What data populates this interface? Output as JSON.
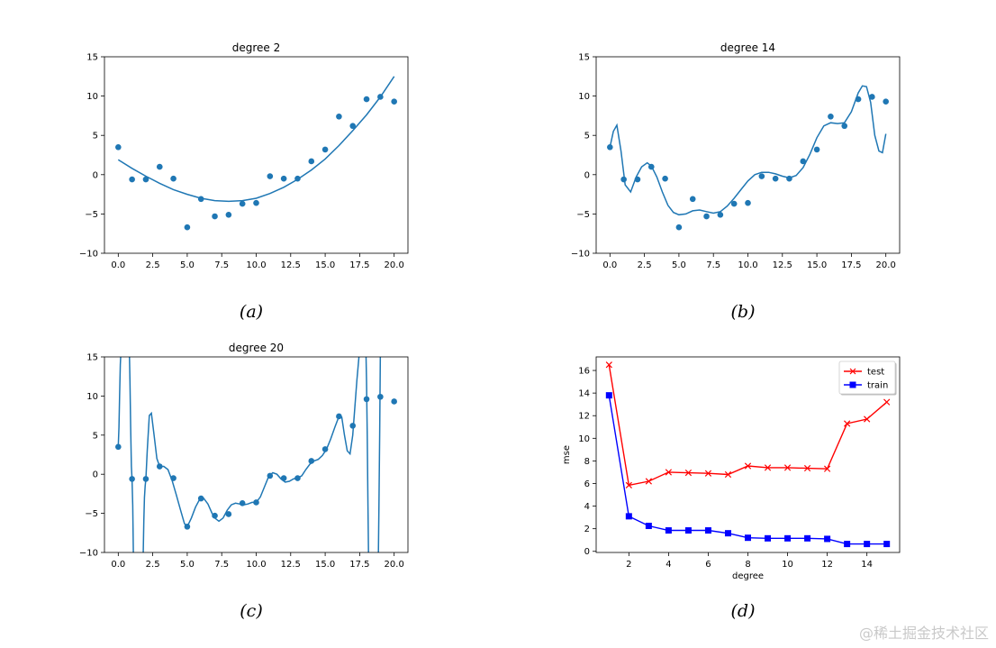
{
  "chart_data": [
    {
      "type": "scatter",
      "title": "degree 2",
      "caption": "(a)",
      "xlim": [
        -1,
        21
      ],
      "ylim": [
        -10,
        15
      ],
      "xticks": [
        0,
        2.5,
        5,
        7.5,
        10,
        12.5,
        15,
        17.5,
        20
      ],
      "xtick_labels": [
        "0.0",
        "2.5",
        "5.0",
        "7.5",
        "10.0",
        "12.5",
        "15.0",
        "17.5",
        "20.0"
      ],
      "yticks": [
        -10,
        -5,
        0,
        5,
        10,
        15
      ],
      "ytick_labels": [
        "−10",
        "−5",
        "0",
        "5",
        "10",
        "15"
      ],
      "points_x": [
        0,
        1,
        2,
        3,
        4,
        5,
        6,
        7,
        8,
        9,
        10,
        11,
        12,
        13,
        14,
        15,
        16,
        17,
        18,
        19,
        20
      ],
      "points_y": [
        3.5,
        -0.6,
        -0.6,
        1.0,
        -0.5,
        -6.7,
        -3.1,
        -5.3,
        -5.1,
        -3.7,
        -3.6,
        -0.2,
        -0.5,
        -0.5,
        1.7,
        3.2,
        7.4,
        6.2,
        9.6,
        9.9,
        9.3
      ],
      "curve_x": [
        0,
        1,
        2,
        3,
        4,
        5,
        6,
        7,
        8,
        9,
        10,
        11,
        12,
        13,
        14,
        15,
        16,
        17,
        18,
        19,
        20
      ],
      "curve_y": [
        1.9,
        0.8,
        -0.2,
        -1.1,
        -1.9,
        -2.5,
        -3.0,
        -3.3,
        -3.4,
        -3.3,
        -3.0,
        -2.4,
        -1.6,
        -0.6,
        0.6,
        2.0,
        3.7,
        5.6,
        7.6,
        9.9,
        12.5
      ]
    },
    {
      "type": "scatter",
      "title": "degree 14",
      "caption": "(b)",
      "xlim": [
        -1,
        21
      ],
      "ylim": [
        -10,
        15
      ],
      "xticks": [
        0,
        2.5,
        5,
        7.5,
        10,
        12.5,
        15,
        17.5,
        20
      ],
      "xtick_labels": [
        "0.0",
        "2.5",
        "5.0",
        "7.5",
        "10.0",
        "12.5",
        "15.0",
        "17.5",
        "20.0"
      ],
      "yticks": [
        -10,
        -5,
        0,
        5,
        10,
        15
      ],
      "ytick_labels": [
        "−10",
        "−5",
        "0",
        "5",
        "10",
        "15"
      ],
      "points_x": [
        0,
        1,
        2,
        3,
        4,
        5,
        6,
        7,
        8,
        9,
        10,
        11,
        12,
        13,
        14,
        15,
        16,
        17,
        18,
        19,
        20
      ],
      "points_y": [
        3.5,
        -0.6,
        -0.6,
        1.0,
        -0.5,
        -6.7,
        -3.1,
        -5.3,
        -5.1,
        -3.7,
        -3.6,
        -0.2,
        -0.5,
        -0.5,
        1.7,
        3.2,
        7.4,
        6.2,
        9.6,
        9.9,
        9.3
      ],
      "curve_x": [
        0,
        0.25,
        0.5,
        0.8,
        1.1,
        1.5,
        1.9,
        2.3,
        2.7,
        3.0,
        3.4,
        3.8,
        4.2,
        4.6,
        5.0,
        5.5,
        6.0,
        6.5,
        7.0,
        7.5,
        8.0,
        8.5,
        9.0,
        9.5,
        10.0,
        10.5,
        11.0,
        11.5,
        12.0,
        12.5,
        13.0,
        13.5,
        14.0,
        14.5,
        15.0,
        15.5,
        16.0,
        16.5,
        17.0,
        17.5,
        18.0,
        18.3,
        18.6,
        18.9,
        19.2,
        19.5,
        19.75,
        20.0
      ],
      "curve_y": [
        3.5,
        5.5,
        6.3,
        3.0,
        -1.3,
        -2.2,
        -0.3,
        1.0,
        1.5,
        1.1,
        -0.3,
        -2.2,
        -3.9,
        -4.8,
        -5.1,
        -5.0,
        -4.6,
        -4.5,
        -4.7,
        -4.9,
        -4.7,
        -4.0,
        -3.0,
        -1.9,
        -0.8,
        0.0,
        0.3,
        0.3,
        0.1,
        -0.2,
        -0.4,
        -0.1,
        0.9,
        2.6,
        4.7,
        6.2,
        6.6,
        6.5,
        6.6,
        8.0,
        10.4,
        11.3,
        11.2,
        9.2,
        5.0,
        3.0,
        2.8,
        5.2
      ]
    },
    {
      "type": "scatter",
      "title": "degree 20",
      "caption": "(c)",
      "xlim": [
        -1,
        21
      ],
      "ylim": [
        -10,
        15
      ],
      "xticks": [
        0,
        2.5,
        5,
        7.5,
        10,
        12.5,
        15,
        17.5,
        20
      ],
      "xtick_labels": [
        "0.0",
        "2.5",
        "5.0",
        "7.5",
        "10.0",
        "12.5",
        "15.0",
        "17.5",
        "20.0"
      ],
      "yticks": [
        -10,
        -5,
        0,
        5,
        10,
        15
      ],
      "ytick_labels": [
        "−10",
        "−5",
        "0",
        "5",
        "10",
        "15"
      ],
      "points_x": [
        0,
        1,
        2,
        3,
        4,
        5,
        6,
        7,
        8,
        9,
        10,
        11,
        12,
        13,
        14,
        15,
        16,
        17,
        18,
        19,
        20
      ],
      "points_y": [
        3.5,
        -0.6,
        -0.6,
        1.0,
        -0.5,
        -6.7,
        -3.1,
        -5.3,
        -5.1,
        -3.7,
        -3.6,
        -0.2,
        -0.5,
        -0.5,
        1.7,
        3.2,
        7.4,
        6.2,
        9.6,
        9.9,
        9.3
      ],
      "curve_x": [
        0,
        0.05,
        0.1,
        0.15,
        0.2,
        null,
        0.8,
        0.85,
        0.9,
        0.95,
        1.0,
        1.05,
        1.1,
        null,
        1.8,
        1.85,
        1.9,
        1.95,
        2.0,
        2.1,
        2.25,
        2.4,
        2.6,
        2.8,
        3.0,
        3.3,
        3.6,
        3.9,
        4.2,
        4.5,
        4.8,
        5.0,
        5.3,
        5.6,
        5.9,
        6.2,
        6.5,
        6.8,
        7.0,
        7.3,
        7.6,
        7.9,
        8.2,
        8.5,
        8.8,
        9.1,
        9.4,
        9.7,
        10.0,
        10.3,
        10.6,
        10.9,
        11.2,
        11.5,
        11.8,
        12.1,
        12.4,
        12.7,
        13.0,
        13.3,
        13.6,
        13.9,
        14.2,
        14.5,
        14.8,
        15.1,
        15.4,
        15.7,
        16.0,
        16.2,
        16.4,
        16.6,
        16.8,
        17.0,
        17.15,
        17.3,
        17.45,
        17.55,
        null,
        17.95,
        18.0,
        18.05,
        18.1,
        18.15,
        null,
        18.85,
        18.9,
        18.95,
        19.0
      ],
      "curve_y": [
        3.5,
        6,
        10,
        14,
        16,
        null,
        16,
        12,
        6,
        1,
        -0.6,
        -4,
        -11,
        null,
        -11,
        -6,
        -3,
        -1.5,
        -0.6,
        3.0,
        7.5,
        7.8,
        5.0,
        2.0,
        1.0,
        1.0,
        0.6,
        -0.8,
        -2.6,
        -4.5,
        -6.3,
        -6.7,
        -5.6,
        -4.2,
        -3.2,
        -3.1,
        -3.8,
        -5.0,
        -5.6,
        -6.0,
        -5.6,
        -4.6,
        -3.9,
        -3.7,
        -3.8,
        -3.9,
        -3.8,
        -3.6,
        -3.6,
        -2.9,
        -1.6,
        -0.3,
        0.2,
        0.0,
        -0.6,
        -1.0,
        -0.9,
        -0.6,
        -0.5,
        -0.2,
        0.6,
        1.3,
        1.7,
        1.9,
        2.4,
        3.2,
        4.5,
        6.0,
        7.4,
        7.3,
        5.0,
        3.0,
        2.6,
        5.0,
        8.5,
        12.0,
        15.0,
        16.0,
        null,
        16,
        12,
        5,
        -4,
        -11,
        null,
        -11,
        -4,
        5,
        16
      ]
    },
    {
      "type": "line",
      "title": "",
      "caption": "(d)",
      "xlabel": "degree",
      "ylabel": "mse",
      "xlim": [
        0.35,
        15.65
      ],
      "ylim": [
        -0.1,
        17.2
      ],
      "xticks": [
        2,
        4,
        6,
        8,
        10,
        12,
        14
      ],
      "xtick_labels": [
        "2",
        "4",
        "6",
        "8",
        "10",
        "12",
        "14"
      ],
      "yticks": [
        0,
        2,
        4,
        6,
        8,
        10,
        12,
        14,
        16
      ],
      "ytick_labels": [
        "0",
        "2",
        "4",
        "6",
        "8",
        "10",
        "12",
        "14",
        "16"
      ],
      "legend_position": "top-right",
      "x": [
        1,
        2,
        3,
        4,
        5,
        6,
        7,
        8,
        9,
        10,
        11,
        12,
        13,
        14,
        15
      ],
      "series": [
        {
          "name": "test",
          "color": "#ff0000",
          "marker": "x",
          "values": [
            16.5,
            5.85,
            6.2,
            7.0,
            6.95,
            6.9,
            6.8,
            7.55,
            7.4,
            7.4,
            7.35,
            7.3,
            11.3,
            11.7,
            13.2
          ]
        },
        {
          "name": "train",
          "color": "#0000ff",
          "marker": "square",
          "values": [
            13.8,
            3.1,
            2.25,
            1.85,
            1.85,
            1.85,
            1.6,
            1.2,
            1.15,
            1.15,
            1.15,
            1.1,
            0.65,
            0.65,
            0.65
          ]
        }
      ]
    }
  ],
  "styles": {
    "point_color": "#1f77b4",
    "line_color": "#1f77b4"
  },
  "watermark": "@稀土掘金技术社区"
}
